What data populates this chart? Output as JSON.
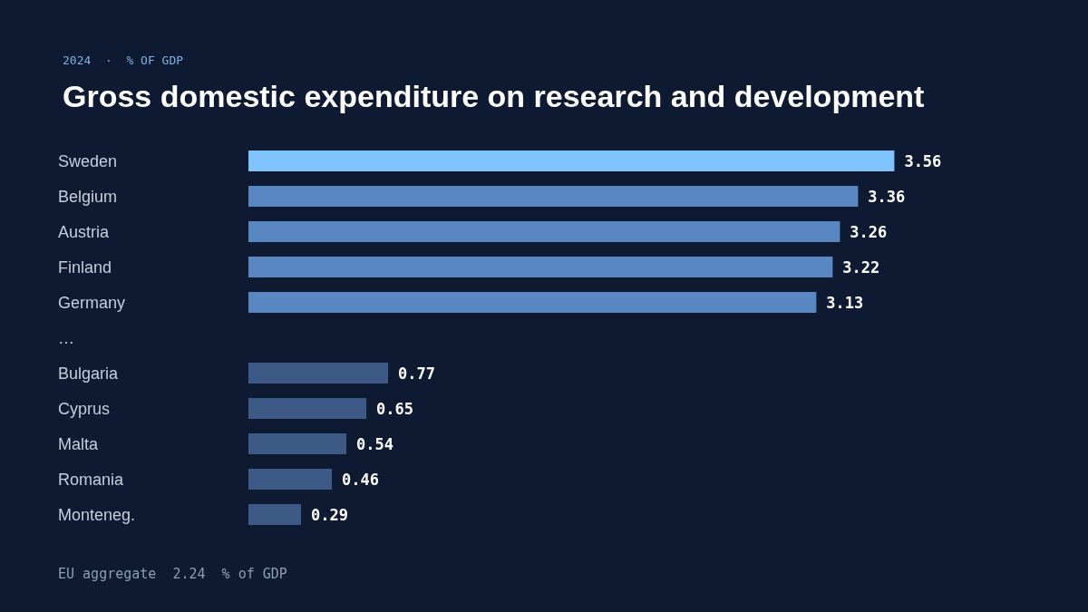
{
  "chart_data": {
    "type": "bar",
    "orientation": "horizontal",
    "title": "Gross domestic expenditure on research and development",
    "subtitle": "2024  ·  % OF GDP",
    "categories": [
      "Sweden",
      "Belgium",
      "Austria",
      "Finland",
      "Germany",
      "…",
      "Bulgaria",
      "Cyprus",
      "Malta",
      "Romania",
      "Monteneg."
    ],
    "values": [
      3.56,
      3.36,
      3.26,
      3.22,
      3.13,
      null,
      0.77,
      0.65,
      0.54,
      0.46,
      0.29
    ],
    "colors": [
      "#7fc3ff",
      "#5887c2",
      "#5887c2",
      "#5887c2",
      "#5887c2",
      null,
      "#3d5a86",
      "#3d5a86",
      "#3d5a86",
      "#3d5a86",
      "#3d5a86"
    ],
    "data_labels": true,
    "annotations": [
      "EU aggregate  2.24  % of GDP"
    ]
  }
}
